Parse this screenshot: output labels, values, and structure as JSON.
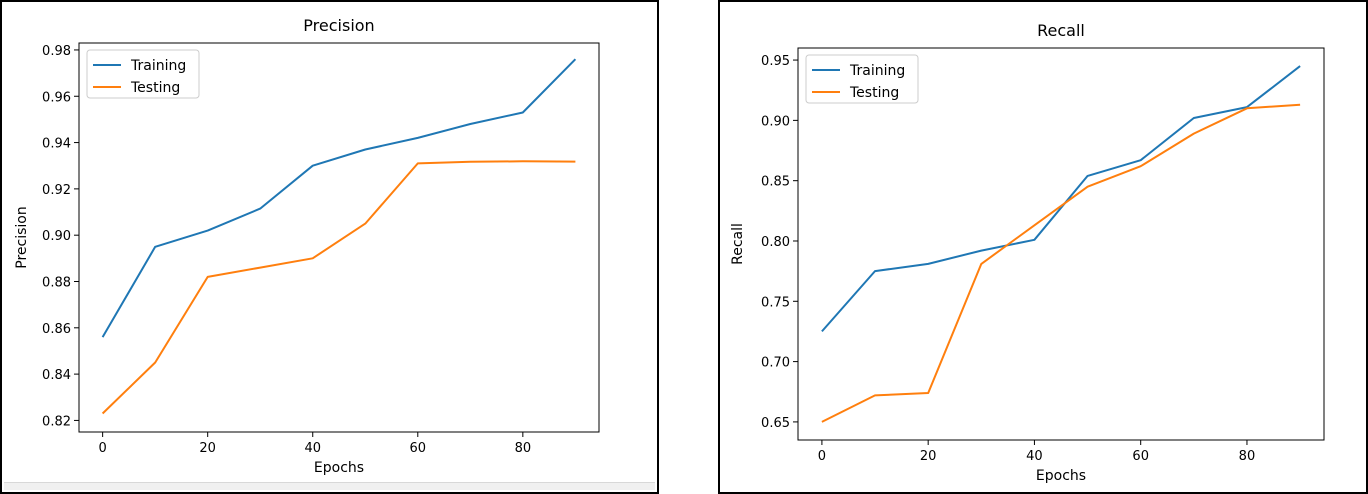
{
  "colors": {
    "training": "#1f77b4",
    "testing": "#ff7f0e"
  },
  "chart_data": [
    {
      "type": "line",
      "title": "Precision",
      "xlabel": "Epochs",
      "ylabel": "Precision",
      "xlim": [
        -4.5,
        94.5
      ],
      "ylim": [
        0.815,
        0.983
      ],
      "xticks": [
        0,
        20,
        40,
        60,
        80
      ],
      "xtick_labels": [
        "0",
        "20",
        "40",
        "60",
        "80"
      ],
      "yticks": [
        0.82,
        0.84,
        0.86,
        0.88,
        0.9,
        0.92,
        0.94,
        0.96,
        0.98
      ],
      "ytick_labels": [
        "0.82",
        "0.84",
        "0.86",
        "0.88",
        "0.90",
        "0.92",
        "0.94",
        "0.96",
        "0.98"
      ],
      "legend": "upper-left",
      "x": [
        0,
        10,
        20,
        30,
        40,
        50,
        60,
        70,
        80,
        90
      ],
      "series": [
        {
          "name": "Training",
          "values": [
            0.856,
            0.895,
            0.902,
            0.9115,
            0.93,
            0.937,
            0.942,
            0.948,
            0.953,
            0.976
          ]
        },
        {
          "name": "Testing",
          "values": [
            0.823,
            0.845,
            0.882,
            0.886,
            0.89,
            0.905,
            0.931,
            0.9317,
            0.9319,
            0.9318
          ]
        }
      ]
    },
    {
      "type": "line",
      "title": "Recall",
      "xlabel": "Epochs",
      "ylabel": "Recall",
      "xlim": [
        -4.5,
        94.5
      ],
      "ylim": [
        0.635,
        0.96
      ],
      "xticks": [
        0,
        20,
        40,
        60,
        80
      ],
      "xtick_labels": [
        "0",
        "20",
        "40",
        "60",
        "80"
      ],
      "yticks": [
        0.65,
        0.7,
        0.75,
        0.8,
        0.85,
        0.9,
        0.95
      ],
      "ytick_labels": [
        "0.65",
        "0.70",
        "0.75",
        "0.80",
        "0.85",
        "0.90",
        "0.95"
      ],
      "legend": "upper-left",
      "x": [
        0,
        10,
        20,
        30,
        40,
        50,
        60,
        70,
        80,
        90
      ],
      "series": [
        {
          "name": "Training",
          "values": [
            0.725,
            0.775,
            0.781,
            0.792,
            0.801,
            0.854,
            0.867,
            0.902,
            0.911,
            0.945
          ]
        },
        {
          "name": "Testing",
          "values": [
            0.65,
            0.672,
            0.674,
            0.781,
            0.813,
            0.845,
            0.862,
            0.889,
            0.91,
            0.913
          ]
        }
      ]
    }
  ]
}
